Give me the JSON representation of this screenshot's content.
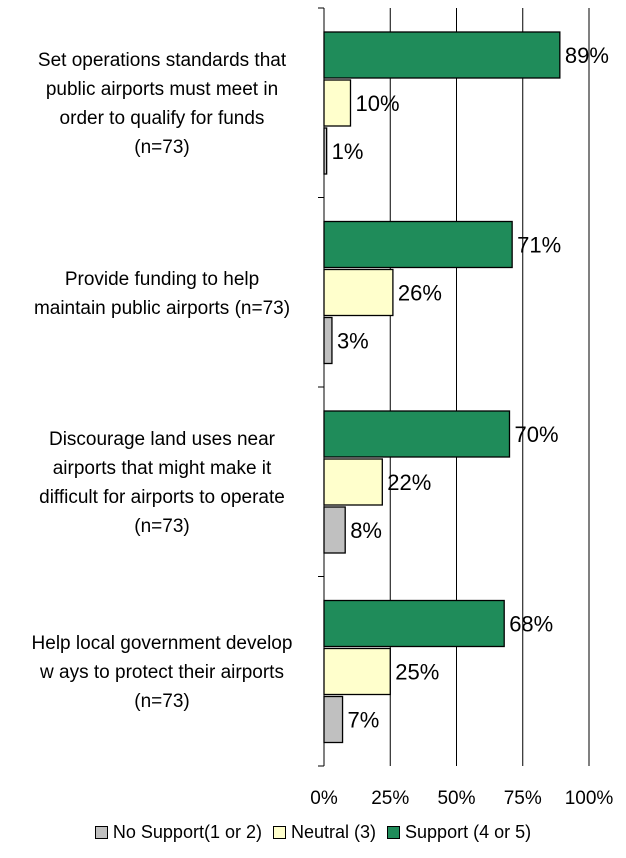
{
  "chart_data": {
    "type": "bar",
    "orientation": "horizontal",
    "title": "",
    "xlabel": "",
    "ylabel": "",
    "xlim": [
      0,
      100
    ],
    "x_ticks": [
      "0%",
      "25%",
      "50%",
      "75%",
      "100%"
    ],
    "grid": true,
    "legend_position": "bottom",
    "categories": [
      "Set operations standards that public airports must meet in order to qualify for funds (n=73)",
      "Provide funding to help maintain public airports (n=73)",
      "Discourage land uses near airports that might make it difficult for airports to operate (n=73)",
      "Help local government develop ways to protect their airports (n=73)"
    ],
    "category_lines": [
      [
        "Set operations standards that",
        "public airports must meet in",
        "order to qualify for funds",
        "(n=73)"
      ],
      [
        "Provide funding to help",
        "maintain public airports (n=73)"
      ],
      [
        "Discourage land uses near",
        "airports that might make it",
        "difficult for airports to operate",
        "(n=73)"
      ],
      [
        "Help local government develop",
        "w ays to protect their airports",
        "(n=73)"
      ]
    ],
    "series": [
      {
        "name": "Support (4 or 5)",
        "color": "#1f8c5a",
        "values": [
          89,
          71,
          70,
          68
        ],
        "labels": [
          "89%",
          "71%",
          "70%",
          "68%"
        ]
      },
      {
        "name": "Neutral (3)",
        "color": "#ffffcc",
        "values": [
          10,
          26,
          22,
          25
        ],
        "labels": [
          "10%",
          "26%",
          "22%",
          "25%"
        ]
      },
      {
        "name": "No Support(1 or 2)",
        "color": "#c0c0c0",
        "values": [
          1,
          3,
          8,
          7
        ],
        "labels": [
          "1%",
          "3%",
          "8%",
          "7%"
        ]
      }
    ],
    "legend_order": [
      "No Support(1 or 2)",
      "Neutral (3)",
      "Support (4 or 5)"
    ]
  }
}
